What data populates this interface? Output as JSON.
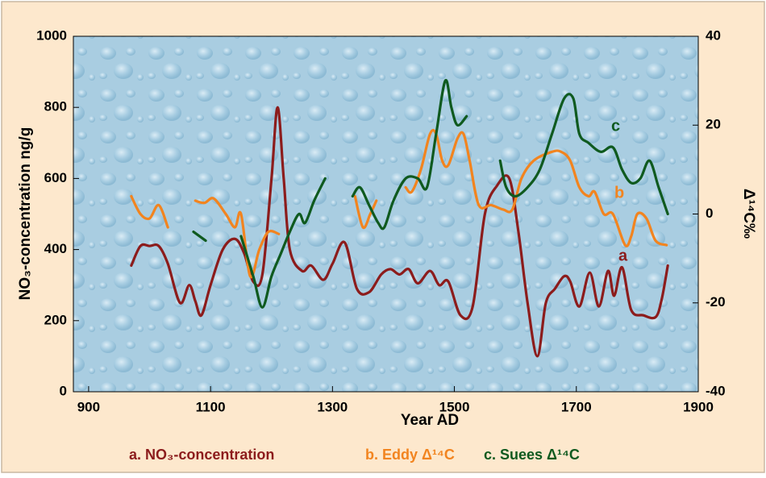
{
  "chart_data": {
    "type": "line",
    "xlabel": "Year AD",
    "ylabel": "NO₃-concentration ng/g",
    "y2label": "Δ¹⁴C‰",
    "xlim": [
      875,
      1900
    ],
    "xticks": [
      900,
      1100,
      1300,
      1500,
      1700,
      1900
    ],
    "ylim": [
      0,
      1000
    ],
    "yticks": [
      0,
      200,
      400,
      600,
      800,
      1000
    ],
    "y2lim": [
      -40,
      40
    ],
    "y2ticks": [
      -40,
      -20,
      0,
      20,
      40
    ],
    "grid": false,
    "series": [
      {
        "name": "a. NO₃-concentration",
        "label": "a",
        "color": "#8c1c1c",
        "axis": "y",
        "x": [
          970,
          985,
          1000,
          1015,
          1030,
          1050,
          1065,
          1075,
          1085,
          1100,
          1120,
          1140,
          1155,
          1170,
          1185,
          1200,
          1210,
          1220,
          1230,
          1250,
          1265,
          1285,
          1300,
          1320,
          1340,
          1360,
          1380,
          1395,
          1410,
          1425,
          1440,
          1460,
          1475,
          1490,
          1510,
          1530,
          1550,
          1570,
          1590,
          1605,
          1620,
          1636,
          1650,
          1665,
          1680,
          1690,
          1705,
          1722,
          1737,
          1752,
          1762,
          1775,
          1790,
          1810,
          1830,
          1840,
          1850
        ],
        "values": [
          355,
          410,
          410,
          410,
          360,
          250,
          300,
          255,
          215,
          300,
          400,
          430,
          390,
          310,
          330,
          600,
          800,
          600,
          400,
          340,
          355,
          315,
          360,
          420,
          290,
          280,
          330,
          345,
          330,
          345,
          305,
          340,
          300,
          310,
          215,
          240,
          500,
          580,
          600,
          450,
          250,
          100,
          250,
          290,
          325,
          310,
          240,
          335,
          240,
          340,
          270,
          350,
          230,
          215,
          210,
          260,
          355
        ]
      },
      {
        "name": "b. Eddy Δ¹⁴C",
        "label": "b",
        "color": "#f2841f",
        "axis": "y2",
        "x": [
          970,
          985,
          1000,
          1015,
          1030,
          null,
          1075,
          1090,
          1105,
          1125,
          1140,
          1150,
          1165,
          1180,
          1195,
          1212,
          null,
          1337,
          1350,
          1362,
          1372,
          null,
          1420,
          1430,
          1445,
          1460,
          1470,
          1480,
          1490,
          1505,
          1515,
          1525,
          1540,
          1560,
          1580,
          1595,
          1610,
          1630,
          1660,
          1675,
          1690,
          1705,
          1720,
          1730,
          1745,
          1760,
          1780,
          1790,
          1800,
          1815,
          1830,
          1848
        ],
        "values": [
          4,
          0,
          -1,
          2,
          -3,
          null,
          3,
          2.5,
          3.5,
          0,
          -3,
          0,
          -14,
          -8,
          -4,
          -4.5,
          null,
          4,
          -3,
          0,
          3,
          null,
          6,
          5,
          10,
          18,
          18,
          12,
          11,
          17,
          18,
          12,
          2,
          2,
          1,
          1,
          8,
          12,
          14,
          14,
          12,
          6,
          4,
          5,
          0,
          0,
          -7,
          -5,
          0,
          -1,
          -6,
          -7
        ]
      },
      {
        "name": "c. Suees Δ¹⁴C",
        "label": "c",
        "color": "#0f5a1f",
        "axis": "y2",
        "x": [
          1072,
          1092,
          null,
          1150,
          1170,
          1185,
          1200,
          1215,
          1230,
          1245,
          1255,
          1270,
          1288,
          null,
          1333,
          1345,
          1360,
          1375,
          1385,
          1400,
          1420,
          1440,
          1455,
          1470,
          1485,
          1495,
          1505,
          1520,
          null,
          1575,
          1585,
          1600,
          1620,
          1640,
          1660,
          1680,
          1695,
          1705,
          1720,
          1740,
          1760,
          1775,
          1790,
          1805,
          1820,
          1835,
          1850
        ],
        "values": [
          -4,
          -6,
          null,
          -5,
          -14,
          -21,
          -14,
          -9,
          -4,
          0,
          -2,
          3,
          8,
          null,
          4,
          6,
          2,
          -2,
          -3,
          3,
          8,
          8,
          6,
          18,
          30,
          24,
          20,
          22,
          null,
          12,
          6,
          4,
          6,
          10,
          18,
          26,
          26,
          18,
          16,
          14,
          15,
          10,
          7,
          8,
          12,
          6,
          0
        ]
      }
    ]
  }
}
